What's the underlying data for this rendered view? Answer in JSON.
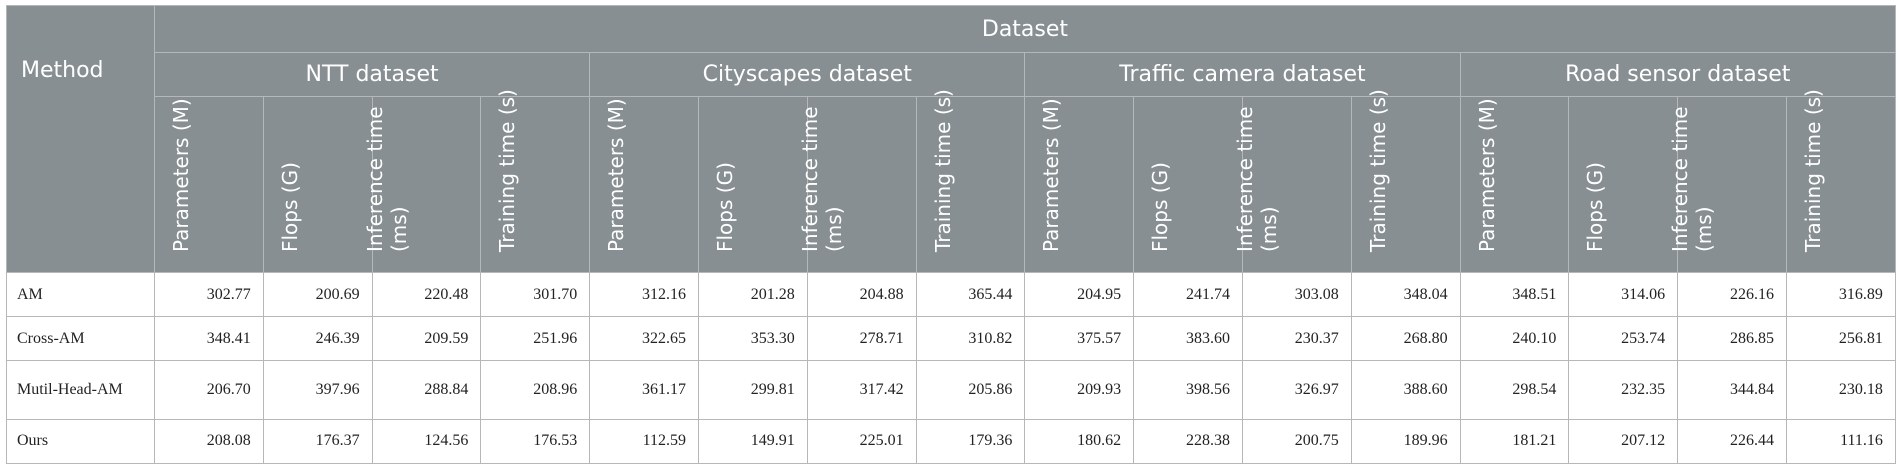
{
  "header": {
    "method": "Method",
    "dataset": "Dataset",
    "groups": [
      "NTT dataset",
      "Cityscapes dataset",
      "Traffic camera dataset",
      "Road sensor dataset"
    ],
    "metrics": [
      "Parameters (M)",
      "Flops (G)",
      "Inference time (ms)",
      "Training  time (s)"
    ]
  },
  "rows": [
    {
      "method": "AM",
      "values": [
        "302.77",
        "200.69",
        "220.48",
        "301.70",
        "312.16",
        "201.28",
        "204.88",
        "365.44",
        "204.95",
        "241.74",
        "303.08",
        "348.04",
        "348.51",
        "314.06",
        "226.16",
        "316.89"
      ]
    },
    {
      "method": "Cross-AM",
      "values": [
        "348.41",
        "246.39",
        "209.59",
        "251.96",
        "322.65",
        "353.30",
        "278.71",
        "310.82",
        "375.57",
        "383.60",
        "230.37",
        "268.80",
        "240.10",
        "253.74",
        "286.85",
        "256.81"
      ]
    },
    {
      "method": "Mutil-Head-AM",
      "values": [
        "206.70",
        "397.96",
        "288.84",
        "208.96",
        "361.17",
        "299.81",
        "317.42",
        "205.86",
        "209.93",
        "398.56",
        "326.97",
        "388.60",
        "298.54",
        "232.35",
        "344.84",
        "230.18"
      ]
    },
    {
      "method": "Ours",
      "values": [
        "208.08",
        "176.37",
        "124.56",
        "176.53",
        "112.59",
        "149.91",
        "225.01",
        "179.36",
        "180.62",
        "228.38",
        "200.75",
        "189.96",
        "181.21",
        "207.12",
        "226.44",
        "111.16"
      ]
    }
  ]
}
